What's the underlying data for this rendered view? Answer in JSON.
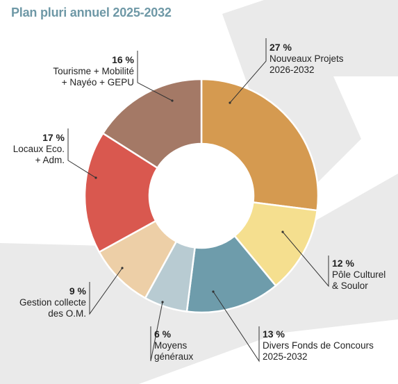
{
  "title": "Plan pluri annuel 2025-2032",
  "colors": {
    "title": "#6e98a6",
    "background_shape": "#eaeaea",
    "leader_line": "#333333"
  },
  "chart_data": {
    "type": "pie",
    "style": "donut",
    "unit": "%",
    "title": "Plan pluri annuel 2025-2032",
    "slices": [
      {
        "pct_label": "27 %",
        "value": 27,
        "label_lines": [
          "Nouveaux Projets",
          "2026-2032"
        ],
        "color": "#d59a50"
      },
      {
        "pct_label": "12 %",
        "value": 12,
        "label_lines": [
          "Pôle Culturel",
          "& Soulor"
        ],
        "color": "#f5df8f"
      },
      {
        "pct_label": "13 %",
        "value": 13,
        "label_lines": [
          "Divers Fonds de Concours",
          "2025-2032"
        ],
        "color": "#6e9cab"
      },
      {
        "pct_label": "6 %",
        "value": 6,
        "label_lines": [
          "Moyens",
          "généraux"
        ],
        "color": "#b8cbd2"
      },
      {
        "pct_label": "9 %",
        "value": 9,
        "label_lines": [
          "Gestion collecte",
          "des O.M."
        ],
        "color": "#edcfa7"
      },
      {
        "pct_label": "17 %",
        "value": 17,
        "label_lines": [
          "Locaux Eco.",
          "+ Adm."
        ],
        "color": "#d9584f"
      },
      {
        "pct_label": "16 %",
        "value": 16,
        "label_lines": [
          "Tourisme + Mobilité",
          "+ Nayéo +  GEPU"
        ],
        "color": "#a47966"
      }
    ]
  }
}
